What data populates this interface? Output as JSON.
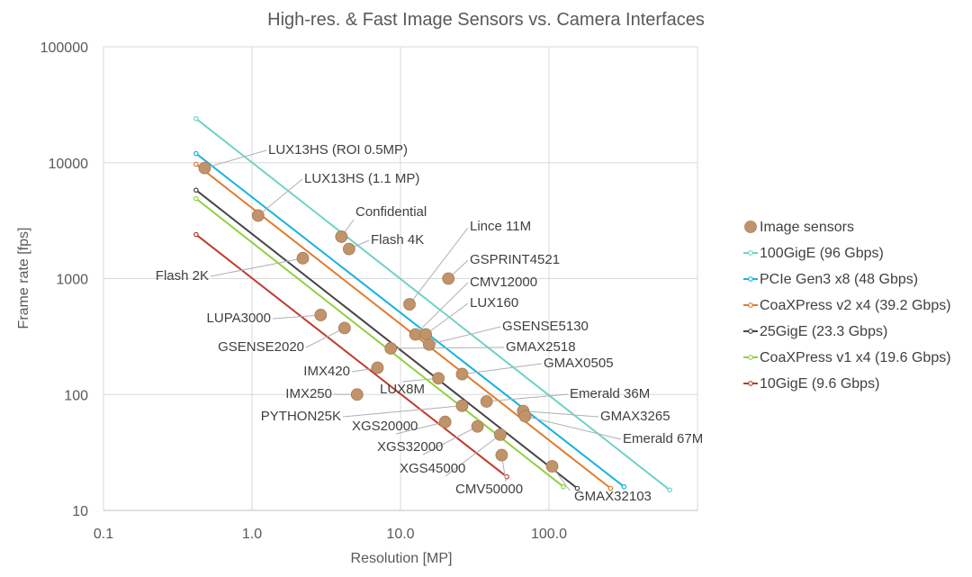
{
  "chart_data": {
    "type": "scatter",
    "title": "High-res. & Fast Image Sensors vs. Camera Interfaces",
    "xlabel": "Resolution [MP]",
    "ylabel": "Frame rate [fps]",
    "xscale": "log",
    "yscale": "log",
    "xlim": [
      0.1,
      1000
    ],
    "ylim": [
      10,
      100000
    ],
    "x_ticks": [
      {
        "value": 0.1,
        "label": "0.1"
      },
      {
        "value": 1,
        "label": "1.0"
      },
      {
        "value": 10,
        "label": "10.0"
      },
      {
        "value": 100,
        "label": "100.0"
      }
    ],
    "y_ticks": [
      {
        "value": 10,
        "label": "10"
      },
      {
        "value": 100,
        "label": "100"
      },
      {
        "value": 1000,
        "label": "1000"
      },
      {
        "value": 10000,
        "label": "10000"
      },
      {
        "value": 100000,
        "label": "100000"
      }
    ],
    "grid": true,
    "legend_position": "right",
    "sensor_series": {
      "name": "Image sensors",
      "color": "#c0936a",
      "points": [
        {
          "name": "LUX13HS (ROI 0.5MP)",
          "x": 0.48,
          "y": 9000
        },
        {
          "name": "LUX13HS (1.1 MP)",
          "x": 1.1,
          "y": 3500
        },
        {
          "name": "Confidential",
          "x": 4.0,
          "y": 2300
        },
        {
          "name": "Flash 4K",
          "x": 4.5,
          "y": 1800
        },
        {
          "name": "Flash 2K",
          "x": 2.2,
          "y": 1500
        },
        {
          "name": "Lince 11M",
          "x": 11.5,
          "y": 600
        },
        {
          "name": "GSPRINT4521",
          "x": 21,
          "y": 1000
        },
        {
          "name": "CMV12000",
          "x": 12.6,
          "y": 330
        },
        {
          "name": "LUX160",
          "x": 14.8,
          "y": 330
        },
        {
          "name": "GSENSE5130",
          "x": 15.6,
          "y": 270
        },
        {
          "name": "LUPA3000",
          "x": 2.9,
          "y": 485
        },
        {
          "name": "GSENSE2020",
          "x": 4.2,
          "y": 375
        },
        {
          "name": "GMAX2518",
          "x": 8.6,
          "y": 250
        },
        {
          "name": "GMAX0505",
          "x": 26,
          "y": 150
        },
        {
          "name": "IMX420",
          "x": 7.0,
          "y": 170
        },
        {
          "name": "LUX8M",
          "x": 18,
          "y": 138
        },
        {
          "name": "IMX250",
          "x": 5.1,
          "y": 100
        },
        {
          "name": "Emerald 36M",
          "x": 38,
          "y": 87
        },
        {
          "name": "PYTHON25K",
          "x": 26,
          "y": 80
        },
        {
          "name": "GMAX3265",
          "x": 67,
          "y": 72
        },
        {
          "name": "Emerald 67M",
          "x": 69,
          "y": 65
        },
        {
          "name": "XGS20000",
          "x": 20,
          "y": 58
        },
        {
          "name": "XGS32000",
          "x": 33,
          "y": 53
        },
        {
          "name": "XGS45000",
          "x": 47,
          "y": 45
        },
        {
          "name": "CMV50000",
          "x": 48,
          "y": 30
        },
        {
          "name": "GMAX32103",
          "x": 105,
          "y": 24
        }
      ]
    },
    "interface_series": [
      {
        "name": "100GigE (96 Gbps)",
        "color": "#6fd3c7",
        "x": [
          0.42,
          650
        ],
        "y": [
          24000,
          15
        ]
      },
      {
        "name": "PCIe Gen3 x8 (48 Gbps)",
        "color": "#19b2e0",
        "x": [
          0.42,
          320
        ],
        "y": [
          12000,
          16
        ]
      },
      {
        "name": "CoaXPress v2 x4 (39.2 Gbps)",
        "color": "#e07b2d",
        "x": [
          0.42,
          260
        ],
        "y": [
          9700,
          15.5
        ]
      },
      {
        "name": "25GigE (23.3 Gbps)",
        "color": "#454545",
        "x": [
          0.42,
          155
        ],
        "y": [
          5800,
          15.5
        ]
      },
      {
        "name": "CoaXPress v1 x4 (19.6 Gbps)",
        "color": "#8fd13f",
        "x": [
          0.42,
          125
        ],
        "y": [
          4900,
          16
        ]
      },
      {
        "name": "10GigE (9.6 Gbps)",
        "color": "#c0392b",
        "x": [
          0.42,
          52
        ],
        "y": [
          2400,
          19.5
        ]
      }
    ]
  }
}
